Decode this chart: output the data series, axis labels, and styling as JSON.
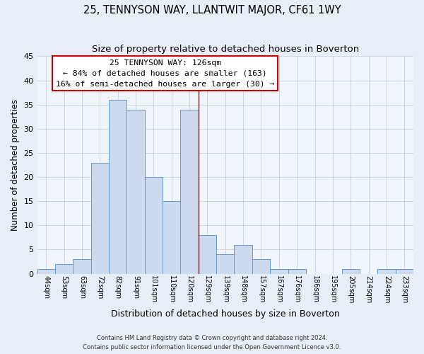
{
  "title": "25, TENNYSON WAY, LLANTWIT MAJOR, CF61 1WY",
  "subtitle": "Size of property relative to detached houses in Boverton",
  "xlabel": "Distribution of detached houses by size in Boverton",
  "ylabel": "Number of detached properties",
  "bar_labels": [
    "44sqm",
    "53sqm",
    "63sqm",
    "72sqm",
    "82sqm",
    "91sqm",
    "101sqm",
    "110sqm",
    "120sqm",
    "129sqm",
    "139sqm",
    "148sqm",
    "157sqm",
    "167sqm",
    "176sqm",
    "186sqm",
    "195sqm",
    "205sqm",
    "214sqm",
    "224sqm",
    "233sqm"
  ],
  "bar_values": [
    1,
    2,
    3,
    23,
    36,
    34,
    20,
    15,
    34,
    8,
    4,
    6,
    3,
    1,
    1,
    0,
    0,
    1,
    0,
    1,
    1
  ],
  "bar_color": "#cdd9ed",
  "bar_edge_color": "#6699cc",
  "vline_x_index": 8.5,
  "vline_color": "#cc0000",
  "annotation_title": "25 TENNYSON WAY: 126sqm",
  "annotation_line1": "← 84% of detached houses are smaller (163)",
  "annotation_line2": "16% of semi-detached houses are larger (30) →",
  "annotation_box_color": "#cc0000",
  "ylim": [
    0,
    45
  ],
  "yticks": [
    0,
    5,
    10,
    15,
    20,
    25,
    30,
    35,
    40,
    45
  ],
  "footer1": "Contains HM Land Registry data © Crown copyright and database right 2024.",
  "footer2": "Contains public sector information licensed under the Open Government Licence v3.0.",
  "bg_color": "#e8eef8",
  "plot_bg_color": "#f0f4fb",
  "grid_color": "#c8d0e0"
}
